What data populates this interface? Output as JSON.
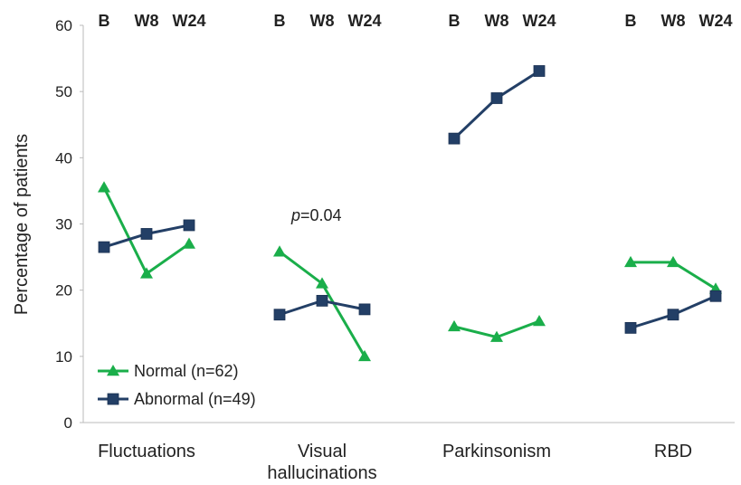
{
  "chart_data": {
    "type": "line",
    "ylabel": "Percentage of patients",
    "ylim": [
      0,
      60
    ],
    "yticks": [
      0,
      10,
      20,
      30,
      40,
      50,
      60
    ],
    "timepoints": [
      "B",
      "W8",
      "W24"
    ],
    "groups": [
      {
        "label_lines": [
          "Fluctuations"
        ],
        "normal": [
          35.5,
          22.5,
          27
        ],
        "abnormal": [
          26.5,
          28.5,
          29.8
        ]
      },
      {
        "label_lines": [
          "Visual",
          "hallucinations"
        ],
        "normal": [
          25.8,
          21,
          10
        ],
        "abnormal": [
          16.3,
          18.4,
          17.1
        ]
      },
      {
        "label_lines": [
          "Parkinsonism"
        ],
        "normal": [
          14.5,
          12.9,
          15.3
        ],
        "abnormal": [
          42.9,
          49,
          53.1
        ]
      },
      {
        "label_lines": [
          "RBD"
        ],
        "normal": [
          24.2,
          24.2,
          20.2
        ],
        "abnormal": [
          14.3,
          16.3,
          19.1
        ]
      }
    ],
    "series": [
      {
        "key": "normal",
        "name": "Normal (n=62)",
        "color": "#1aae4a",
        "marker": "triangle"
      },
      {
        "key": "abnormal",
        "name": "Abnormal (n=49)",
        "color": "#233f66",
        "marker": "square"
      }
    ],
    "annotation": {
      "p_italic": "p",
      "rest": "=0.04"
    },
    "grid": false,
    "legend_position": "bottom-left"
  }
}
